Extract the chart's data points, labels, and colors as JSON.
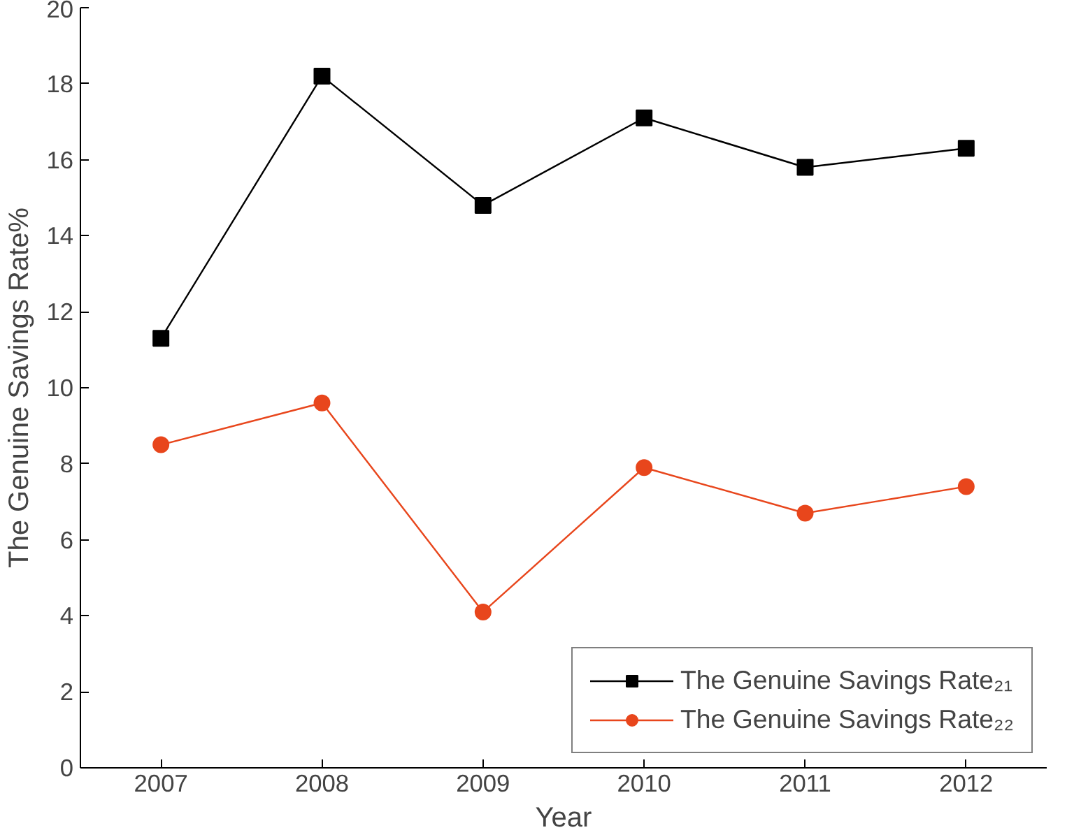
{
  "chart_data": {
    "type": "line",
    "xlabel": "Year",
    "ylabel": "The Genuine Savings Rate%",
    "x": [
      2007,
      2008,
      2009,
      2010,
      2011,
      2012
    ],
    "xlim": [
      2006.5,
      2012.5
    ],
    "xticks": [
      2007,
      2008,
      2009,
      2010,
      2011,
      2012
    ],
    "ylim": [
      0,
      20
    ],
    "yticks": [
      0,
      2,
      4,
      6,
      8,
      10,
      12,
      14,
      16,
      18,
      20
    ],
    "grid": false,
    "legend": "bottom right",
    "line_style": "solid",
    "series": [
      {
        "name": "The Genuine Savings Rate₂₁",
        "color": "#000000",
        "marker": "square",
        "values": [
          11.3,
          18.2,
          14.8,
          17.1,
          15.8,
          16.3
        ]
      },
      {
        "name": "The Genuine Savings Rate₂₂",
        "color": "#e8461c",
        "marker": "circle",
        "values": [
          8.5,
          9.6,
          4.1,
          7.9,
          6.7,
          7.4
        ]
      }
    ]
  }
}
